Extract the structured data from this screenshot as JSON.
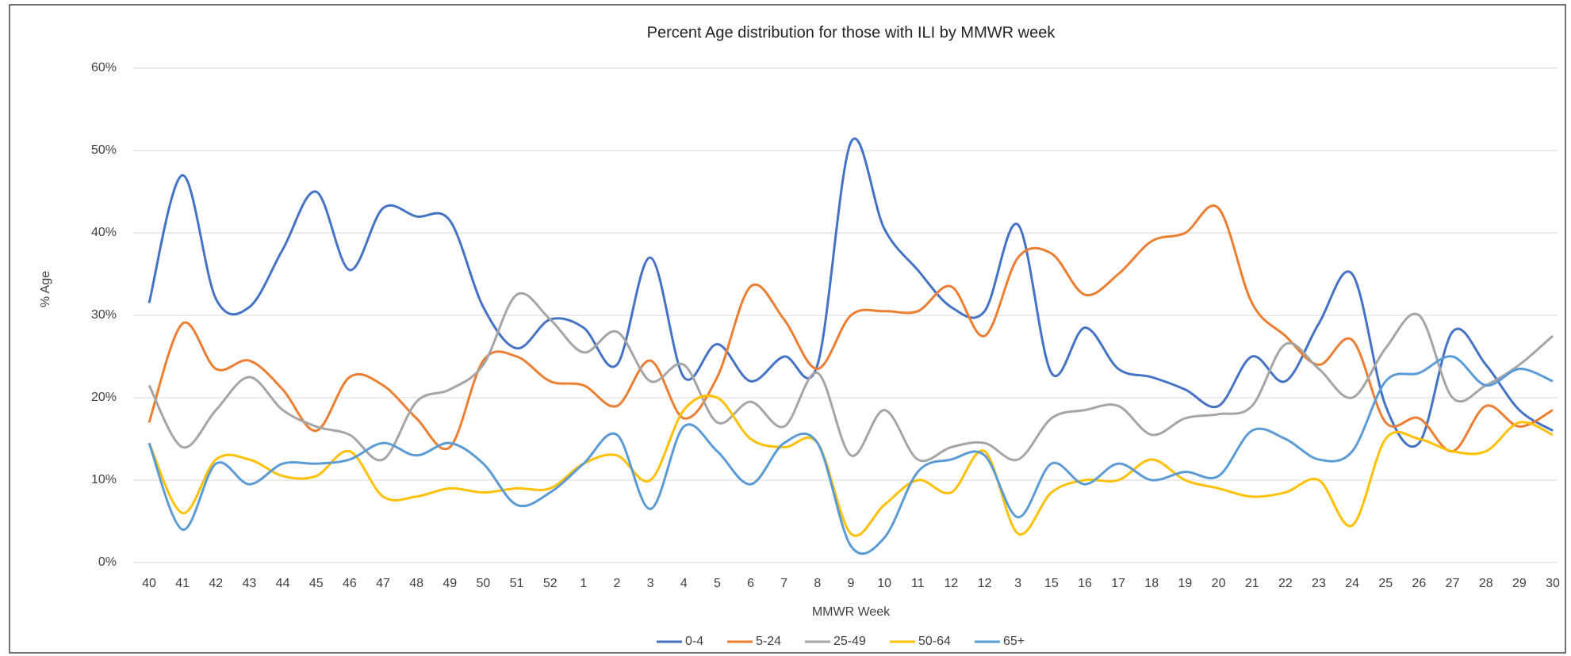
{
  "chart_data": {
    "type": "line",
    "title": "Percent Age distribution for those with ILI by MMWR week",
    "x_label": "MMWR Week",
    "y_label": "% Age",
    "categories": [
      "40",
      "41",
      "42",
      "43",
      "44",
      "45",
      "46",
      "47",
      "48",
      "49",
      "50",
      "51",
      "52",
      "1",
      "2",
      "3",
      "4",
      "5",
      "6",
      "7",
      "8",
      "9",
      "10",
      "11",
      "12",
      "12",
      "3",
      "15",
      "16",
      "17",
      "18",
      "19",
      "20",
      "21",
      "22",
      "23",
      "24",
      "25",
      "26",
      "27",
      "28",
      "29",
      "30"
    ],
    "ylim": [
      0,
      60
    ],
    "yticks": [
      {
        "value": 0,
        "label": "0%"
      },
      {
        "value": 10,
        "label": "10%"
      },
      {
        "value": 20,
        "label": "20%"
      },
      {
        "value": 30,
        "label": "30%"
      },
      {
        "value": 40,
        "label": "40%"
      },
      {
        "value": 50,
        "label": "50%"
      },
      {
        "value": 60,
        "label": "60%"
      }
    ],
    "grid": true,
    "legend": "bottom",
    "series": [
      {
        "name": "0-4",
        "color": "#4472c4",
        "values": [
          31.5,
          47,
          32,
          31,
          38,
          45,
          35.5,
          43,
          42,
          41.5,
          31,
          26,
          29.5,
          28.5,
          24,
          37,
          22.5,
          26.5,
          22,
          25,
          24,
          51,
          40.5,
          35.5,
          31,
          30.5,
          41,
          23,
          28.5,
          23.5,
          22.5,
          21,
          19,
          25,
          22,
          29,
          35,
          19,
          14.5,
          28,
          24,
          18.5,
          16
        ]
      },
      {
        "name": "5-24",
        "color": "#ed7d31",
        "values": [
          17,
          29,
          23.5,
          24.5,
          21,
          16,
          22.5,
          21.5,
          17.5,
          14,
          24.5,
          25,
          22,
          21.5,
          19,
          24.5,
          17.5,
          22.5,
          33.5,
          29.5,
          23.5,
          30,
          30.5,
          30.5,
          33.5,
          27.5,
          37,
          37.5,
          32.5,
          35,
          39,
          40,
          43,
          31.5,
          27.5,
          24,
          27,
          17,
          17.5,
          13.5,
          19,
          16.5,
          18.5
        ]
      },
      {
        "name": "25-49",
        "color": "#a5a5a5",
        "values": [
          21.5,
          14,
          18.5,
          22.5,
          18.5,
          16.5,
          15.5,
          12.5,
          19.5,
          21,
          24,
          32.5,
          29.5,
          25.5,
          28,
          22,
          24,
          17,
          19.5,
          16.5,
          23,
          13,
          18.5,
          12.5,
          14,
          14.5,
          12.5,
          17.5,
          18.5,
          19,
          15.5,
          17.5,
          18,
          19,
          26.5,
          23.5,
          20,
          26,
          30,
          20,
          21.5,
          24,
          27.5
        ]
      },
      {
        "name": "50-64",
        "color": "#ffc000",
        "values": [
          14.5,
          6,
          12.5,
          12.5,
          10.5,
          10.5,
          13.5,
          8,
          8,
          9,
          8.5,
          9,
          9,
          12,
          13,
          10,
          18.5,
          20,
          15,
          14,
          14.5,
          3.5,
          7,
          10,
          8.5,
          13.5,
          3.5,
          8.5,
          10,
          10,
          12.5,
          10,
          9,
          8,
          8.5,
          10,
          4.5,
          15,
          15,
          13.5,
          13.5,
          17,
          15.5
        ]
      },
      {
        "name": "65+",
        "color": "#5b9bd5",
        "values": [
          14.5,
          4,
          12,
          9.5,
          12,
          12,
          12.5,
          14.5,
          13,
          14.5,
          12,
          7,
          8.5,
          12,
          15.5,
          6.5,
          16.5,
          13.5,
          9.5,
          14.5,
          14.5,
          2,
          3,
          11,
          12.5,
          13,
          5.5,
          12,
          9.5,
          12,
          10,
          11,
          10.5,
          16,
          15,
          12.5,
          13.5,
          22,
          23,
          25,
          21.5,
          23.5,
          22
        ]
      }
    ]
  }
}
